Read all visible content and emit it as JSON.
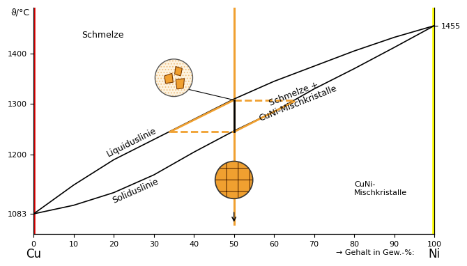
{
  "chart_data": {
    "type": "line",
    "ylabel": "ϑ/°C",
    "xlabel": "→ Gehalt in Gew.-%:",
    "x": [
      0,
      10,
      20,
      30,
      40,
      50,
      60,
      70,
      80,
      90,
      100
    ],
    "series": [
      {
        "name": "Liquiduslinie",
        "color": "#000000",
        "values": [
          1083,
          1140,
          1190,
          1230,
          1270,
          1310,
          1345,
          1375,
          1405,
          1432,
          1455
        ]
      },
      {
        "name": "Soliduslinie",
        "color": "#000000",
        "values": [
          1083,
          1100,
          1125,
          1160,
          1205,
          1247,
          1285,
          1330,
          1370,
          1412,
          1455
        ]
      }
    ],
    "xlim": [
      0,
      100
    ],
    "xticks": [
      0,
      10,
      20,
      30,
      40,
      50,
      60,
      70,
      80,
      90,
      100
    ],
    "ylim": [
      1043,
      1490
    ],
    "yticks": [
      1083,
      1200,
      1300,
      1400
    ],
    "y2lim": [
      1043,
      1490
    ],
    "y2ticks": [
      1455
    ],
    "components": [
      {
        "name": "Cu",
        "x": 0,
        "color": "#e00000"
      },
      {
        "name": "Ni",
        "x": 100,
        "color": "#ffff00"
      }
    ],
    "regions": [
      "Schmelze",
      "Schmelze +\nCuNi-Mischkristalle",
      "CuNi-\nMischkristalle"
    ],
    "cooling": {
      "color": "#f0a030",
      "alloy": 50,
      "end": 1063,
      "liquid_path": {
        "x": [
          34,
          50
        ],
        "values": [
          1245,
          1308
        ]
      },
      "solid_path": {
        "x": [
          50,
          65
        ],
        "values": [
          1245,
          1305
        ]
      }
    }
  }
}
